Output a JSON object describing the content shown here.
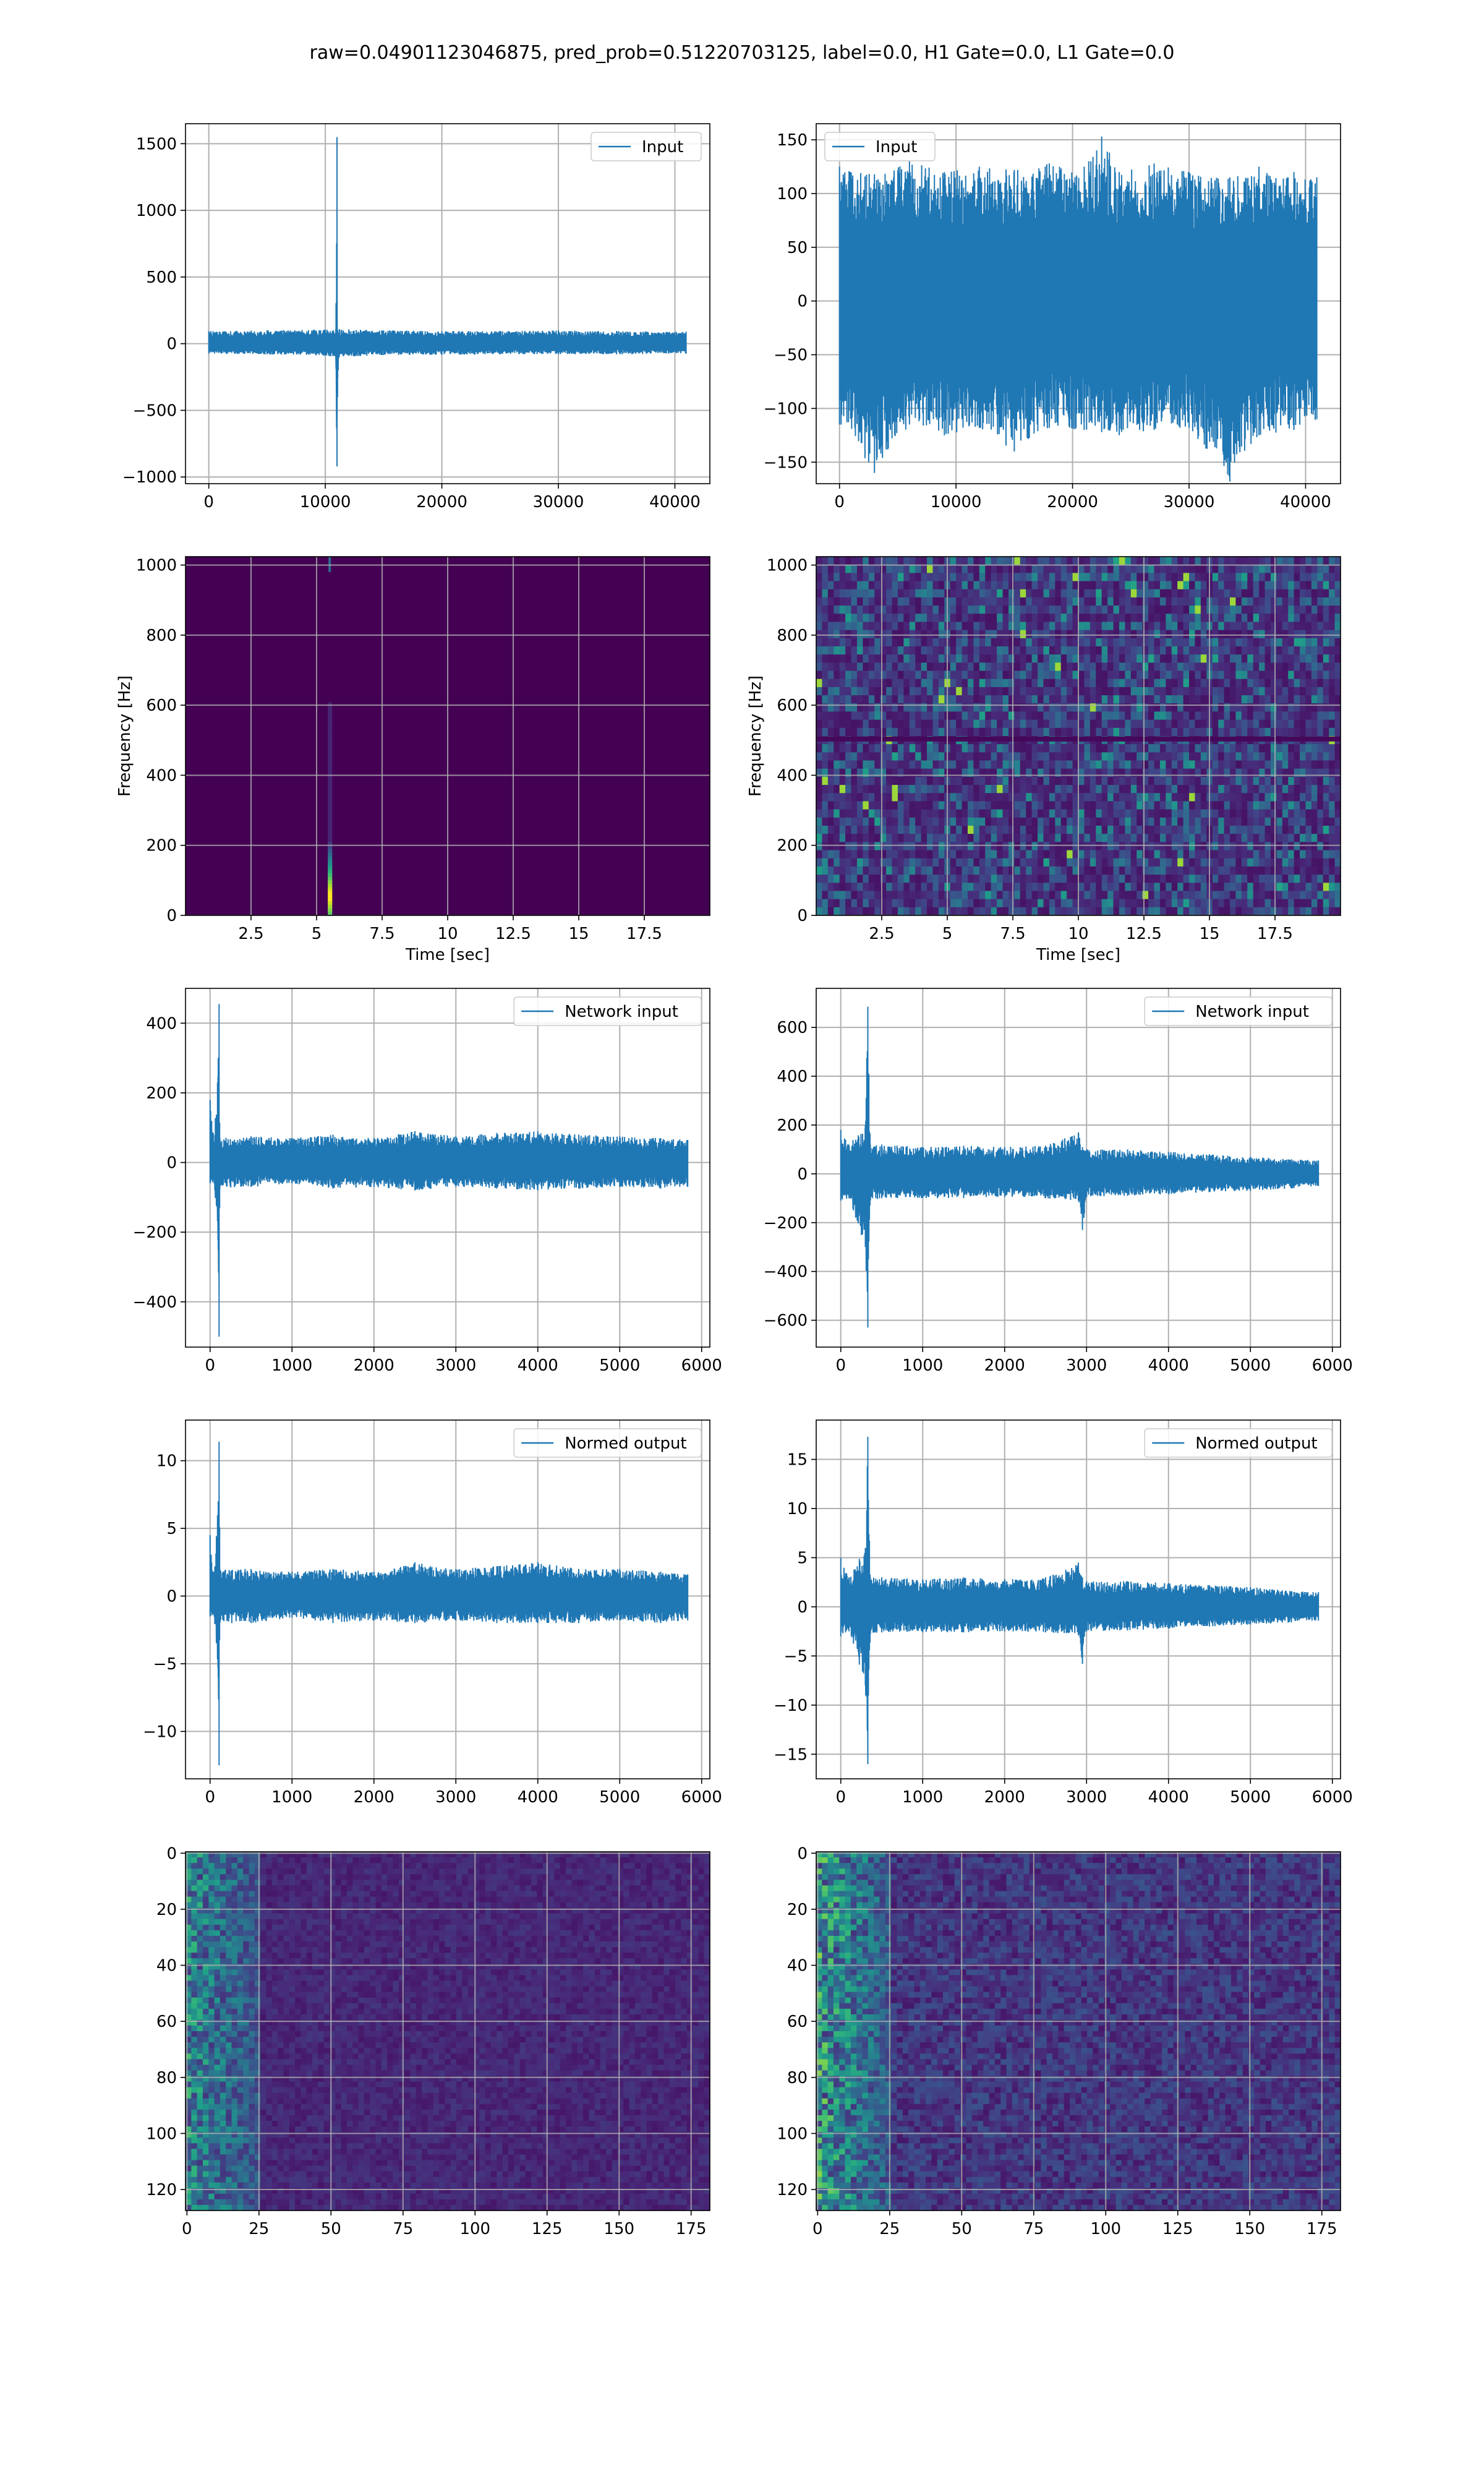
{
  "title": "raw=0.04901123046875, pred_prob=0.51220703125, label=0.0, H1 Gate=0.0, L1 Gate=0.0",
  "colors": {
    "line": "#1f77b4",
    "grid": "#b0b0b0",
    "viridis_dark": "#440154"
  },
  "chart_data": [
    {
      "id": "h1-input",
      "type": "line",
      "grid": true,
      "legend": "top-right",
      "series": [
        {
          "name": "Input",
          "x": [
            0,
            5000,
            10000,
            10900,
            11000,
            11050,
            11100,
            11200,
            15000,
            20000,
            25000,
            30000,
            35000,
            40960
          ],
          "upper": [
            95,
            100,
            105,
            110,
            1550,
            100,
            80,
            110,
            100,
            95,
            95,
            100,
            95,
            90
          ],
          "lower": [
            -75,
            -80,
            -90,
            -100,
            -920,
            -400,
            -200,
            -100,
            -85,
            -85,
            -80,
            -80,
            -80,
            -75
          ]
        }
      ],
      "xlim": [
        -2000,
        43000
      ],
      "ylim": [
        -1050,
        1650
      ],
      "xticks": [
        0,
        10000,
        20000,
        30000,
        40000
      ],
      "yticks": [
        -1000,
        -500,
        0,
        500,
        1000,
        1500
      ]
    },
    {
      "id": "l1-input",
      "type": "line",
      "grid": true,
      "legend": "top-left",
      "series": [
        {
          "name": "Input",
          "x": [
            0,
            3000,
            6000,
            9000,
            12000,
            15000,
            18000,
            21000,
            22500,
            24000,
            27000,
            30000,
            33500,
            36000,
            39000,
            40960
          ],
          "upper": [
            125,
            118,
            130,
            120,
            125,
            122,
            128,
            125,
            153,
            120,
            128,
            120,
            115,
            125,
            120,
            115
          ],
          "lower": [
            -115,
            -160,
            -115,
            -125,
            -118,
            -140,
            -118,
            -120,
            -122,
            -125,
            -120,
            -118,
            -168,
            -125,
            -120,
            -110
          ]
        }
      ],
      "xlim": [
        -2000,
        43000
      ],
      "ylim": [
        -170,
        165
      ],
      "xticks": [
        0,
        10000,
        20000,
        30000,
        40000
      ],
      "yticks": [
        -150,
        -100,
        -50,
        0,
        50,
        100,
        150
      ]
    },
    {
      "id": "h1-spectrogram",
      "type": "heatmap",
      "grid": true,
      "xlabel": "Time [sec]",
      "ylabel": "Frequency [Hz]",
      "xlim": [
        0,
        20
      ],
      "ylim": [
        0,
        1024
      ],
      "xticks": [
        2.5,
        5.0,
        7.5,
        10.0,
        12.5,
        15.0,
        17.5
      ],
      "yticks": [
        0,
        200,
        400,
        600,
        800,
        1000
      ],
      "features": [
        {
          "t": 5.5,
          "f_from": 0,
          "f_to": 600,
          "peak_f": 50,
          "note": "glitch"
        }
      ]
    },
    {
      "id": "l1-spectrogram",
      "type": "heatmap",
      "grid": true,
      "xlabel": "Time [sec]",
      "ylabel": "Frequency [Hz]",
      "xlim": [
        0,
        20
      ],
      "ylim": [
        0,
        1024
      ],
      "xticks": [
        2.5,
        5.0,
        7.5,
        10.0,
        12.5,
        15.0,
        17.5
      ],
      "yticks": [
        0,
        200,
        400,
        600,
        800,
        1000
      ],
      "features": [
        {
          "f": 500,
          "note": "horizontal line"
        }
      ]
    },
    {
      "id": "h1-network-input",
      "type": "line",
      "grid": true,
      "legend": "top-right",
      "series": [
        {
          "name": "Network input",
          "x": [
            0,
            50,
            100,
            110,
            120,
            500,
            1000,
            1500,
            2000,
            2500,
            3000,
            3500,
            4000,
            4500,
            5000,
            5500,
            5830
          ],
          "upper": [
            180,
            60,
            300,
            455,
            70,
            75,
            70,
            80,
            70,
            90,
            75,
            85,
            90,
            80,
            75,
            70,
            65
          ],
          "lower": [
            -60,
            -60,
            -250,
            -500,
            -75,
            -70,
            -60,
            -75,
            -70,
            -80,
            -70,
            -75,
            -80,
            -75,
            -70,
            -75,
            -70
          ]
        }
      ],
      "xlim": [
        -300,
        6100
      ],
      "ylim": [
        -530,
        500
      ],
      "xticks": [
        0,
        1000,
        2000,
        3000,
        4000,
        5000,
        6000
      ],
      "yticks": [
        -400,
        -200,
        0,
        200,
        400
      ]
    },
    {
      "id": "l1-network-input",
      "type": "line",
      "grid": true,
      "legend": "top-right",
      "series": [
        {
          "name": "Network input",
          "x": [
            0,
            100,
            300,
            330,
            360,
            500,
            1000,
            1500,
            2000,
            2500,
            2900,
            2950,
            3000,
            3500,
            4000,
            4500,
            5000,
            5500,
            5830
          ],
          "upper": [
            180,
            120,
            200,
            685,
            120,
            120,
            110,
            115,
            110,
            115,
            170,
            110,
            100,
            100,
            90,
            80,
            70,
            60,
            55
          ],
          "lower": [
            -110,
            -100,
            -300,
            -630,
            -110,
            -100,
            -100,
            -100,
            -95,
            -100,
            -110,
            -230,
            -95,
            -90,
            -85,
            -75,
            -70,
            -60,
            -50
          ]
        }
      ],
      "xlim": [
        -300,
        6100
      ],
      "ylim": [
        -710,
        760
      ],
      "xticks": [
        0,
        1000,
        2000,
        3000,
        4000,
        5000,
        6000
      ],
      "yticks": [
        -600,
        -400,
        -200,
        0,
        200,
        400,
        600
      ]
    },
    {
      "id": "h1-normed-output",
      "type": "line",
      "grid": true,
      "legend": "top-right",
      "series": [
        {
          "name": "Normed output",
          "x": [
            0,
            50,
            100,
            110,
            120,
            500,
            1000,
            1500,
            2000,
            2500,
            3000,
            3500,
            4000,
            4500,
            5000,
            5500,
            5830
          ],
          "upper": [
            4.5,
            1.8,
            7.0,
            11.4,
            2.0,
            2.0,
            1.8,
            2.0,
            1.8,
            2.5,
            2.0,
            2.2,
            2.5,
            2.0,
            2.0,
            1.8,
            1.6
          ],
          "lower": [
            -1.5,
            -1.5,
            -6.0,
            -12.5,
            -2.0,
            -2.0,
            -1.6,
            -2.0,
            -1.8,
            -2.0,
            -1.8,
            -2.0,
            -2.0,
            -2.0,
            -1.8,
            -2.0,
            -1.8
          ]
        }
      ],
      "xlim": [
        -300,
        6100
      ],
      "ylim": [
        -13.5,
        13.0
      ],
      "xticks": [
        0,
        1000,
        2000,
        3000,
        4000,
        5000,
        6000
      ],
      "yticks": [
        -10,
        -5,
        0,
        5,
        10
      ]
    },
    {
      "id": "l1-normed-output",
      "type": "line",
      "grid": true,
      "legend": "top-right",
      "series": [
        {
          "name": "Normed output",
          "x": [
            0,
            100,
            300,
            330,
            360,
            500,
            1000,
            1500,
            2000,
            2500,
            2900,
            2950,
            3000,
            3500,
            4000,
            4500,
            5000,
            5500,
            5830
          ],
          "upper": [
            5.0,
            3.0,
            6.0,
            17.3,
            3.0,
            3.0,
            2.8,
            3.0,
            2.8,
            3.0,
            4.5,
            3.0,
            2.6,
            2.6,
            2.4,
            2.2,
            2.0,
            1.6,
            1.5
          ],
          "lower": [
            -3.0,
            -2.5,
            -8.0,
            -16.0,
            -2.8,
            -2.6,
            -2.6,
            -2.6,
            -2.5,
            -2.6,
            -2.8,
            -5.8,
            -2.5,
            -2.4,
            -2.2,
            -2.0,
            -1.8,
            -1.6,
            -1.4
          ]
        }
      ],
      "xlim": [
        -300,
        6100
      ],
      "ylim": [
        -17.5,
        19.0
      ],
      "xticks": [
        0,
        1000,
        2000,
        3000,
        4000,
        5000,
        6000
      ],
      "yticks": [
        -15,
        -10,
        -5,
        0,
        5,
        10,
        15
      ]
    },
    {
      "id": "h1-feature-map",
      "type": "heatmap",
      "grid": true,
      "xlim": [
        -0.5,
        181.5
      ],
      "ylim": [
        127.5,
        -0.5
      ],
      "xticks": [
        0,
        25,
        50,
        75,
        100,
        125,
        150,
        175
      ],
      "yticks": [
        0,
        20,
        40,
        60,
        80,
        100,
        120
      ],
      "features": [
        {
          "cols_from": 0,
          "cols_to": 25,
          "note": "bright left band"
        }
      ]
    },
    {
      "id": "l1-feature-map",
      "type": "heatmap",
      "grid": true,
      "xlim": [
        -0.5,
        181.5
      ],
      "ylim": [
        127.5,
        -0.5
      ],
      "xticks": [
        0,
        25,
        50,
        75,
        100,
        125,
        150,
        175
      ],
      "yticks": [
        0,
        20,
        40,
        60,
        80,
        100,
        120
      ],
      "features": [
        {
          "cols_from": 0,
          "cols_to": 25,
          "note": "bright left band"
        }
      ]
    }
  ]
}
